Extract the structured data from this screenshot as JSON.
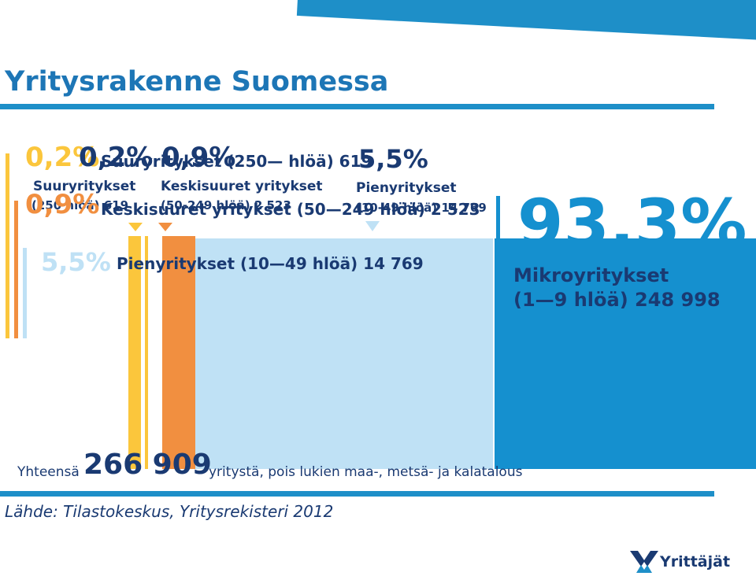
{
  "header": {
    "title": "Yritysrakenne Suomessa"
  },
  "colors": {
    "accent": "#1e8fc8",
    "large": "#fbc63c",
    "medium": "#f18f40",
    "small": "#bfe1f5",
    "micro": "#1590cf",
    "text_dark": "#1a3a72"
  },
  "overlay_texts": {
    "line1_pct_a": "0,2%",
    "line1_pct_b": "0,2%",
    "line1_pct_c": "0,9%",
    "line1_text": "Suuryritykset (250— hlöä) 619",
    "line1_pct_d": "5,5%",
    "line2_pct": "0,9%",
    "line2_text": "Keskisuuret yritykset (50—249 hlöä) 2 523",
    "line3_pct": "5,5%",
    "line3_text": "Pienyritykset (10—49 hlöä) 14 769"
  },
  "segments": {
    "large": {
      "label_line1": "Suuryritykset",
      "label_line2": "(250  hlöä) 619"
    },
    "medium": {
      "label_line1": "Keskisuuret yritykset",
      "label_line2": "(50-249 hlöä) 2 523"
    },
    "small": {
      "label_line1": "Pienyritykset",
      "label_line2": "(10-49 hlöä) 14 769"
    },
    "micro": {
      "percent": "93,3%",
      "label_line1": "Mikroyritykset",
      "label_line2": "(1—9 hlöä) 248 998"
    }
  },
  "chart_data": {
    "type": "bar",
    "categories": [
      "Suuryritykset",
      "Keskisuuret yritykset",
      "Pienyritykset",
      "Mikroyritykset"
    ],
    "values": [
      619,
      2523,
      14769,
      248998
    ],
    "percentages": [
      0.2,
      0.9,
      5.5,
      93.3
    ]
  },
  "footer": {
    "total_prefix": "Yhteensä",
    "total_number": "266 909",
    "total_suffix": "yritystä, pois lukien maa-, metsä- ja kalatalous",
    "source": "Lähde: Tilastokeskus, Yritysrekisteri 2012",
    "logo_text": "Yrittäjät"
  }
}
